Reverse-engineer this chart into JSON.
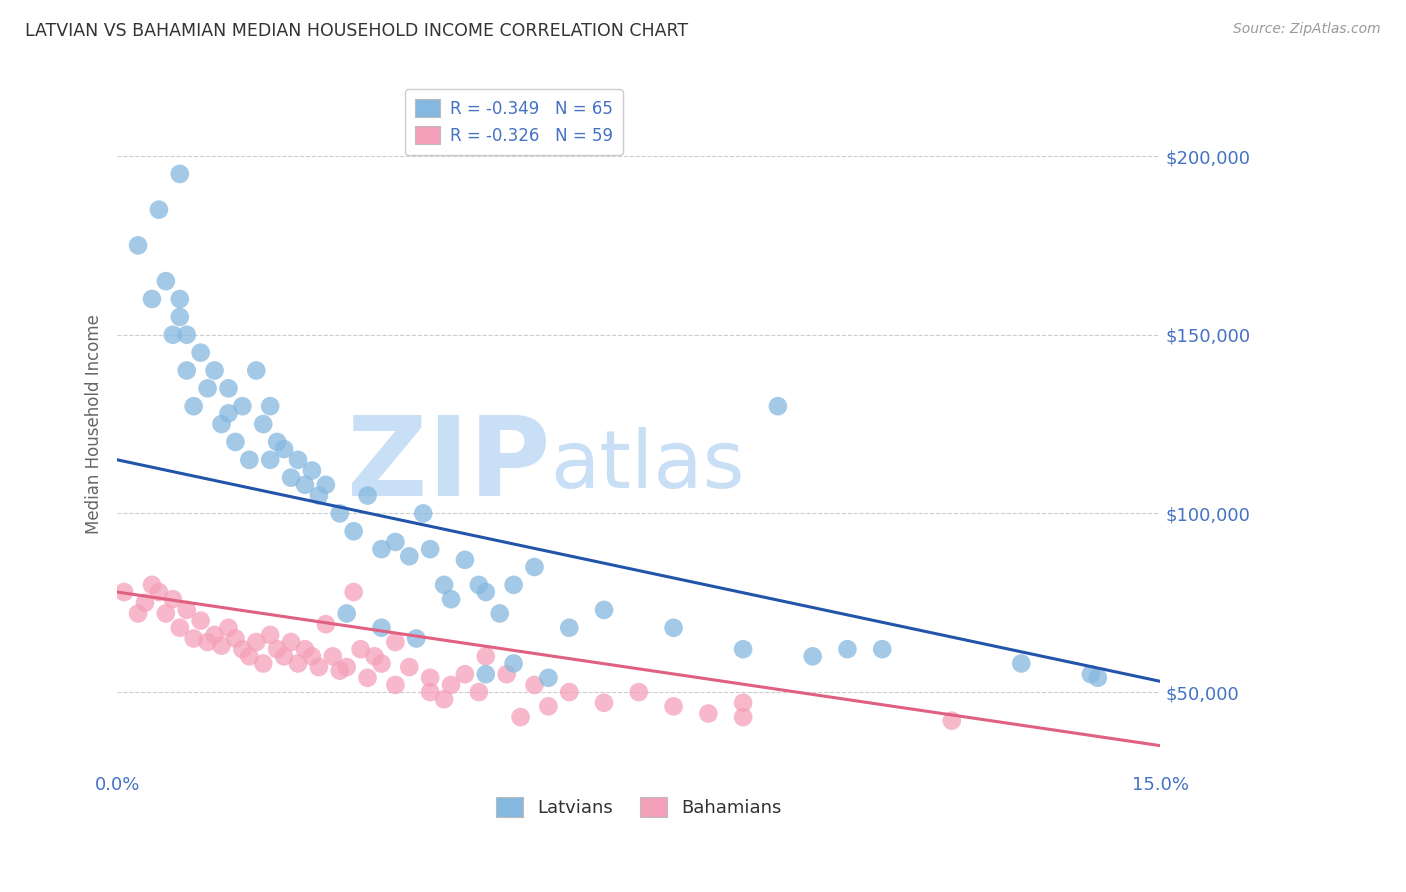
{
  "title": "LATVIAN VS BAHAMIAN MEDIAN HOUSEHOLD INCOME CORRELATION CHART",
  "source_text": "Source: ZipAtlas.com",
  "ylabel": "Median Household Income",
  "xlim": [
    0.0,
    0.15
  ],
  "ylim": [
    28000,
    222000
  ],
  "ytick_values": [
    50000,
    100000,
    150000,
    200000
  ],
  "ytick_labels": [
    "$50,000",
    "$100,000",
    "$150,000",
    "$200,000"
  ],
  "axis_color": "#4472C4",
  "title_color": "#444444",
  "watermark_zip": "ZIP",
  "watermark_atlas": "atlas",
  "watermark_color": "#c8dff5",
  "latvians_color": "#85b8e0",
  "bahamians_color": "#f5a0bb",
  "latvians_line_color": "#2255aa",
  "bahamians_line_color": "#e06080",
  "legend_label1": "Latvians",
  "legend_label2": "Bahamians",
  "blue_line_y0": 115000,
  "blue_line_y1": 53000,
  "pink_line_y0": 78000,
  "pink_line_y1": 35000,
  "latvians_x": [
    0.003,
    0.005,
    0.006,
    0.007,
    0.008,
    0.009,
    0.009,
    0.01,
    0.01,
    0.011,
    0.012,
    0.013,
    0.014,
    0.015,
    0.016,
    0.016,
    0.017,
    0.018,
    0.019,
    0.02,
    0.021,
    0.022,
    0.022,
    0.023,
    0.024,
    0.025,
    0.026,
    0.027,
    0.028,
    0.029,
    0.03,
    0.032,
    0.034,
    0.036,
    0.038,
    0.04,
    0.042,
    0.044,
    0.047,
    0.05,
    0.053,
    0.057,
    0.06,
    0.065,
    0.07,
    0.08,
    0.09,
    0.095,
    0.1,
    0.105,
    0.11,
    0.13,
    0.14,
    0.141,
    0.009,
    0.045,
    0.055,
    0.052,
    0.048,
    0.038,
    0.033,
    0.043,
    0.053,
    0.057,
    0.062
  ],
  "latvians_y": [
    175000,
    160000,
    185000,
    165000,
    150000,
    155000,
    160000,
    140000,
    150000,
    130000,
    145000,
    135000,
    140000,
    125000,
    135000,
    128000,
    120000,
    130000,
    115000,
    140000,
    125000,
    130000,
    115000,
    120000,
    118000,
    110000,
    115000,
    108000,
    112000,
    105000,
    108000,
    100000,
    95000,
    105000,
    90000,
    92000,
    88000,
    100000,
    80000,
    87000,
    78000,
    80000,
    85000,
    68000,
    73000,
    68000,
    62000,
    130000,
    60000,
    62000,
    62000,
    58000,
    55000,
    54000,
    195000,
    90000,
    72000,
    80000,
    76000,
    68000,
    72000,
    65000,
    55000,
    58000,
    54000
  ],
  "bahamians_x": [
    0.001,
    0.003,
    0.004,
    0.005,
    0.006,
    0.007,
    0.008,
    0.009,
    0.01,
    0.011,
    0.012,
    0.013,
    0.014,
    0.015,
    0.016,
    0.017,
    0.018,
    0.019,
    0.02,
    0.021,
    0.022,
    0.023,
    0.024,
    0.025,
    0.026,
    0.027,
    0.028,
    0.029,
    0.03,
    0.031,
    0.033,
    0.034,
    0.035,
    0.037,
    0.038,
    0.04,
    0.042,
    0.045,
    0.048,
    0.05,
    0.053,
    0.056,
    0.06,
    0.065,
    0.07,
    0.075,
    0.08,
    0.085,
    0.09,
    0.09,
    0.032,
    0.036,
    0.04,
    0.045,
    0.047,
    0.052,
    0.058,
    0.062,
    0.12
  ],
  "bahamians_y": [
    78000,
    72000,
    75000,
    80000,
    78000,
    72000,
    76000,
    68000,
    73000,
    65000,
    70000,
    64000,
    66000,
    63000,
    68000,
    65000,
    62000,
    60000,
    64000,
    58000,
    66000,
    62000,
    60000,
    64000,
    58000,
    62000,
    60000,
    57000,
    69000,
    60000,
    57000,
    78000,
    62000,
    60000,
    58000,
    64000,
    57000,
    54000,
    52000,
    55000,
    60000,
    55000,
    52000,
    50000,
    47000,
    50000,
    46000,
    44000,
    47000,
    43000,
    56000,
    54000,
    52000,
    50000,
    48000,
    50000,
    43000,
    46000,
    42000
  ]
}
